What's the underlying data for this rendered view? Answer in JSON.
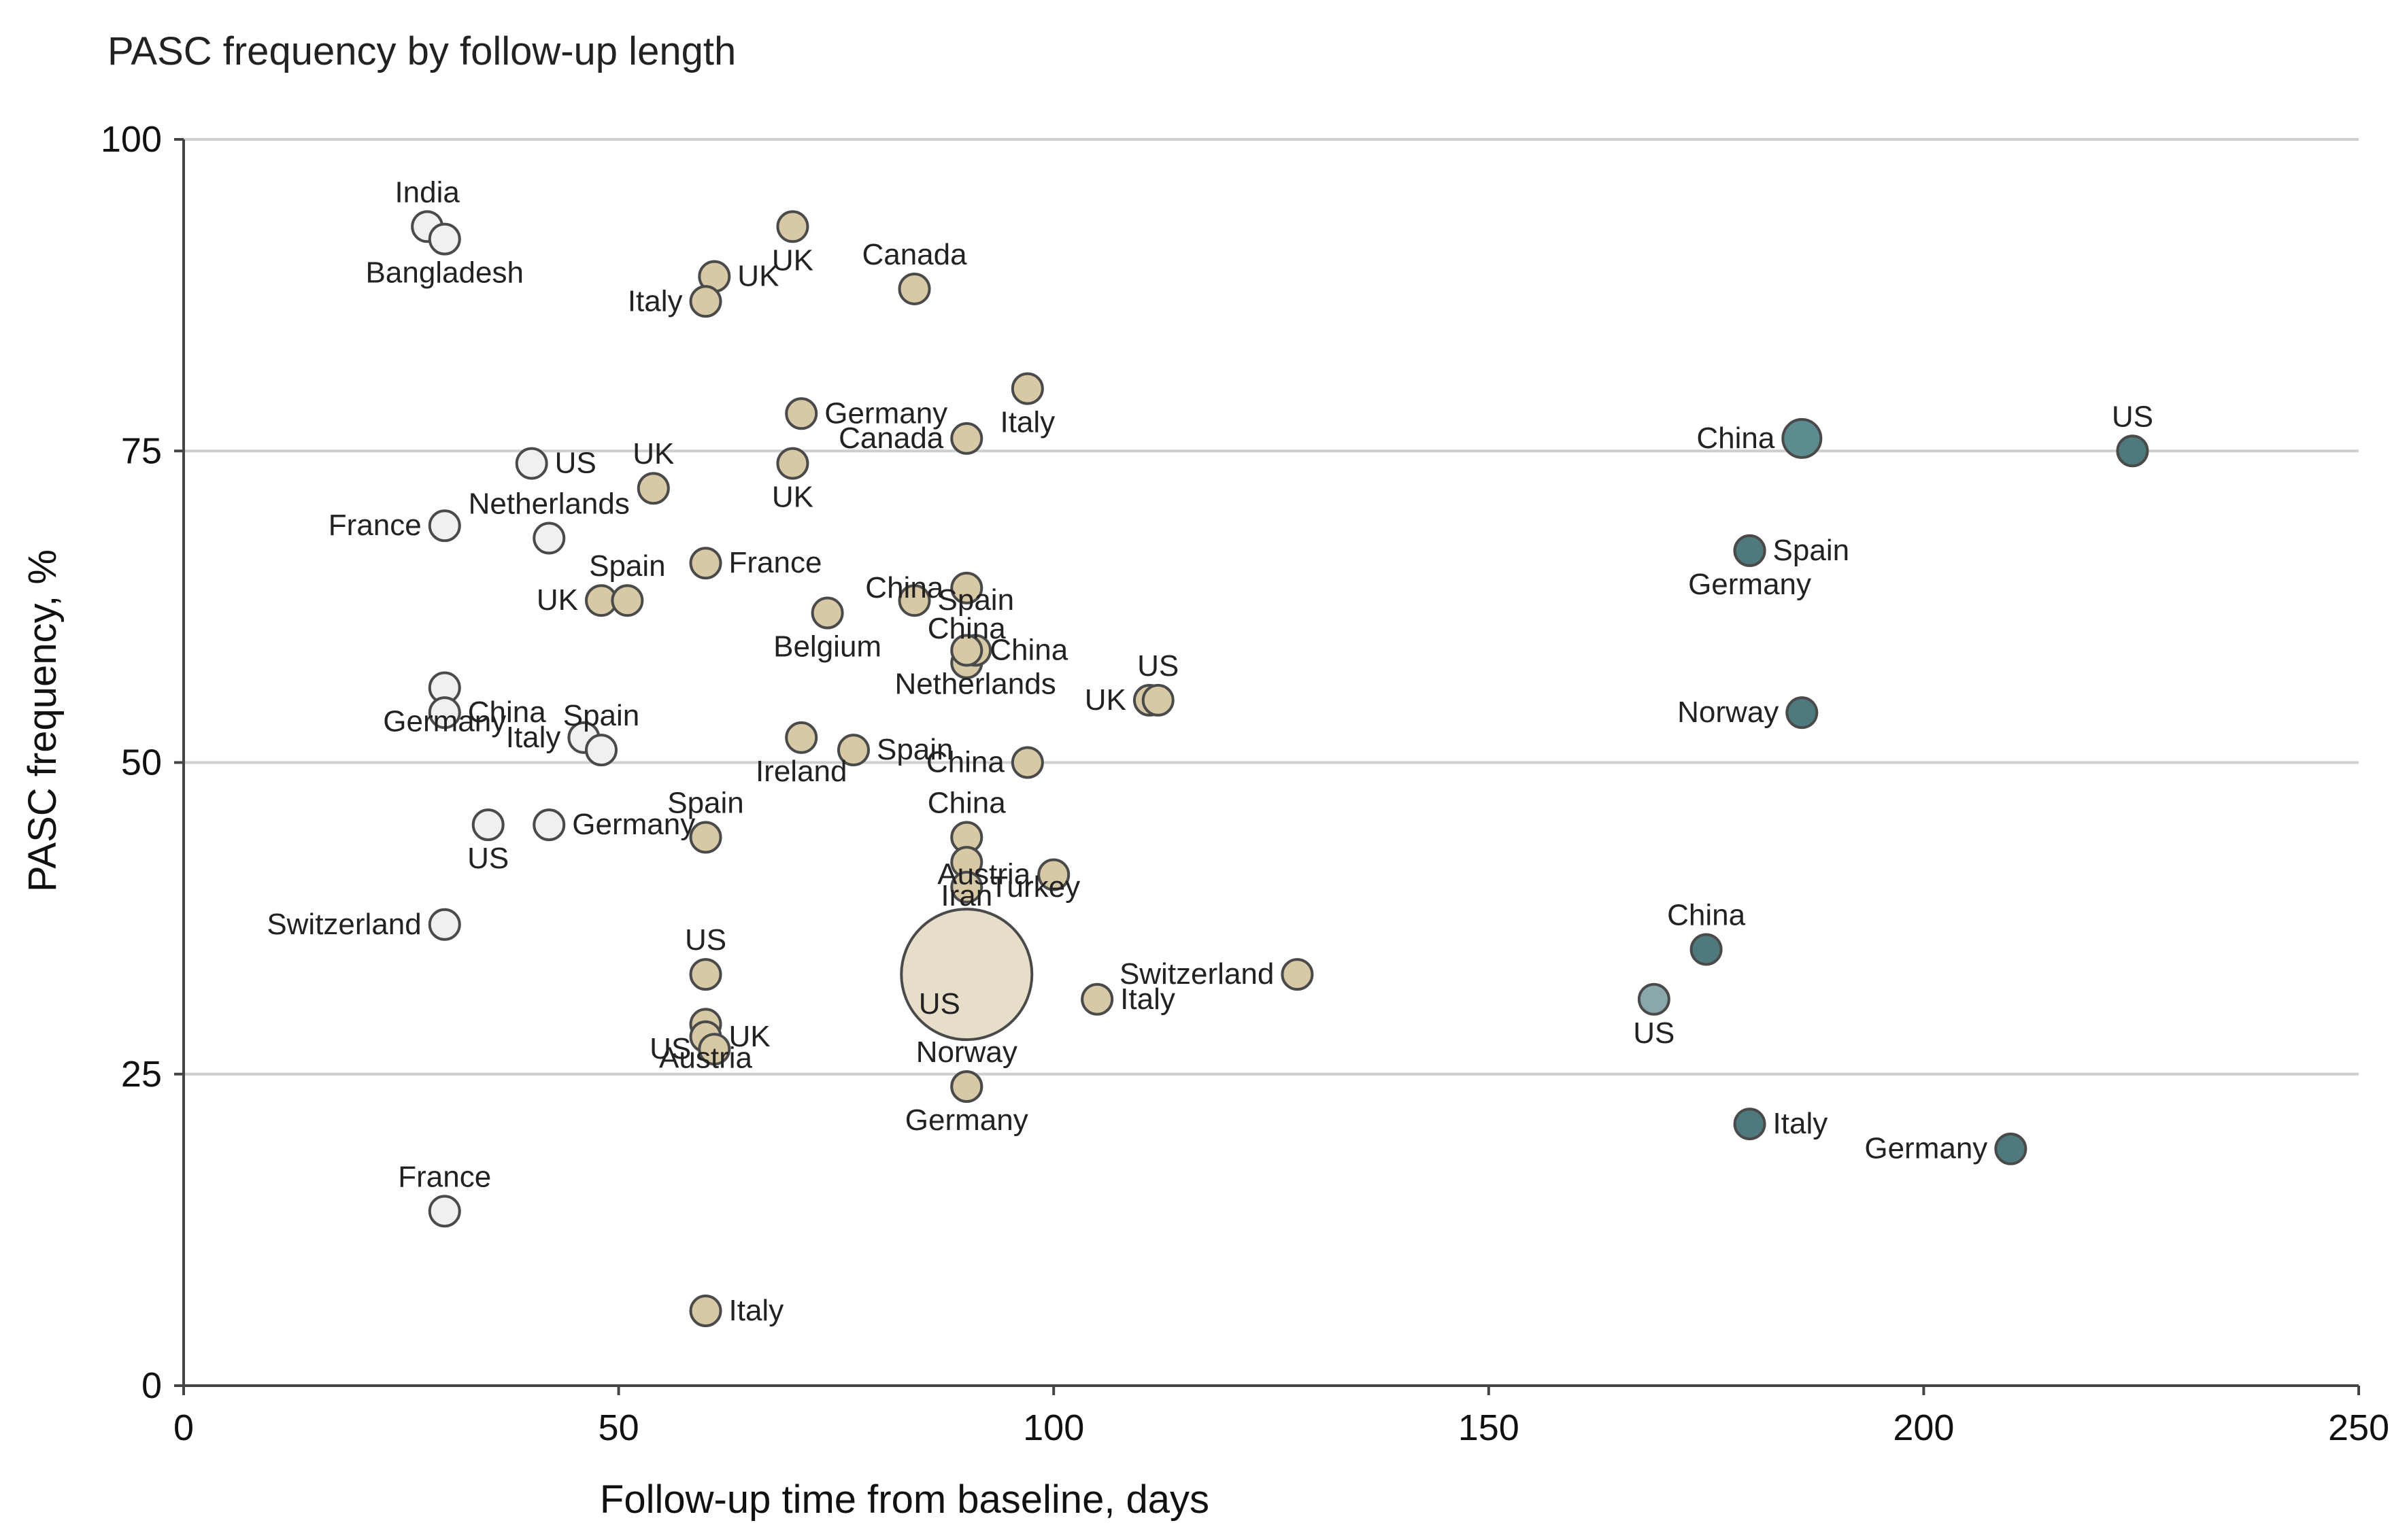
{
  "chart_data": {
    "type": "scatter",
    "title": "PASC frequency by follow-up length",
    "xlabel": "Follow-up time from baseline, days",
    "ylabel": "PASC frequency, %",
    "xlim": [
      0,
      250
    ],
    "ylim": [
      0,
      100
    ],
    "x_ticks": [
      0,
      50,
      100,
      150,
      200,
      250
    ],
    "y_ticks": [
      0,
      25,
      50,
      75,
      100
    ],
    "grid": "horizontal",
    "colors": {
      "light": "#eef1f0",
      "tan": "#d8c9a6",
      "dark": "#4e7a7e",
      "medium": "#8aa7ab",
      "large": "#e3d8c0"
    },
    "points": [
      {
        "x": 28,
        "y": 93,
        "label": "India",
        "group": "light",
        "size": "small"
      },
      {
        "x": 30,
        "y": 92,
        "label": "Bangladesh",
        "group": "light",
        "size": "small"
      },
      {
        "x": 40,
        "y": 74,
        "label": "US",
        "group": "light",
        "size": "small"
      },
      {
        "x": 30,
        "y": 69,
        "label": "France",
        "group": "light",
        "size": "small"
      },
      {
        "x": 42,
        "y": 68,
        "label": "Netherlands",
        "group": "light",
        "size": "small"
      },
      {
        "x": 30,
        "y": 56,
        "label": "Germany",
        "group": "light",
        "size": "small"
      },
      {
        "x": 30,
        "y": 54,
        "label": "China",
        "group": "light",
        "size": "small"
      },
      {
        "x": 46,
        "y": 52,
        "label": "Italy",
        "group": "light",
        "size": "small"
      },
      {
        "x": 48,
        "y": 51,
        "label": "Spain",
        "group": "light",
        "size": "small"
      },
      {
        "x": 35,
        "y": 45,
        "label": "US",
        "group": "light",
        "size": "small"
      },
      {
        "x": 42,
        "y": 45,
        "label": "Germany",
        "group": "light",
        "size": "small"
      },
      {
        "x": 30,
        "y": 37,
        "label": "Switzerland",
        "group": "light",
        "size": "small"
      },
      {
        "x": 30,
        "y": 14,
        "label": "France",
        "group": "light",
        "size": "small"
      },
      {
        "x": 70,
        "y": 93,
        "label": "UK",
        "group": "tan",
        "size": "small"
      },
      {
        "x": 61,
        "y": 89,
        "label": "UK",
        "group": "tan",
        "size": "small"
      },
      {
        "x": 60,
        "y": 87,
        "label": "Italy",
        "group": "tan",
        "size": "small"
      },
      {
        "x": 84,
        "y": 88,
        "label": "Canada",
        "group": "tan",
        "size": "small"
      },
      {
        "x": 97,
        "y": 80,
        "label": "Italy",
        "group": "tan",
        "size": "small"
      },
      {
        "x": 71,
        "y": 78,
        "label": "Germany",
        "group": "tan",
        "size": "small"
      },
      {
        "x": 90,
        "y": 76,
        "label": "Canada",
        "group": "tan",
        "size": "small"
      },
      {
        "x": 54,
        "y": 72,
        "label": "UK",
        "group": "tan",
        "size": "small"
      },
      {
        "x": 70,
        "y": 74,
        "label": "UK",
        "group": "tan",
        "size": "small"
      },
      {
        "x": 60,
        "y": 66,
        "label": "France",
        "group": "tan",
        "size": "small"
      },
      {
        "x": 48,
        "y": 63,
        "label": "UK",
        "group": "tan",
        "size": "small"
      },
      {
        "x": 51,
        "y": 63,
        "label": "Spain",
        "group": "tan",
        "size": "small"
      },
      {
        "x": 74,
        "y": 62,
        "label": "Belgium",
        "group": "tan",
        "size": "small"
      },
      {
        "x": 84,
        "y": 63,
        "label": "Spain",
        "group": "tan",
        "size": "small"
      },
      {
        "x": 90,
        "y": 64,
        "label": "China",
        "group": "tan",
        "size": "small"
      },
      {
        "x": 90,
        "y": 58,
        "label": "China",
        "group": "tan",
        "size": "small"
      },
      {
        "x": 91,
        "y": 59,
        "label": "Netherlands",
        "group": "tan",
        "size": "small"
      },
      {
        "x": 90,
        "y": 59,
        "label": "China",
        "group": "tan",
        "size": "small"
      },
      {
        "x": 111,
        "y": 55,
        "label": "UK",
        "group": "tan",
        "size": "small"
      },
      {
        "x": 112,
        "y": 55,
        "label": "US",
        "group": "tan",
        "size": "small"
      },
      {
        "x": 71,
        "y": 52,
        "label": "Ireland",
        "group": "tan",
        "size": "small"
      },
      {
        "x": 77,
        "y": 51,
        "label": "Spain",
        "group": "tan",
        "size": "small"
      },
      {
        "x": 97,
        "y": 50,
        "label": "China",
        "group": "tan",
        "size": "small"
      },
      {
        "x": 90,
        "y": 44,
        "label": "China",
        "group": "tan",
        "size": "small"
      },
      {
        "x": 90,
        "y": 42,
        "label": "Iran",
        "group": "tan",
        "size": "small"
      },
      {
        "x": 90,
        "y": 40,
        "label": "Turkey",
        "group": "tan",
        "size": "small"
      },
      {
        "x": 100,
        "y": 41,
        "label": "Austria",
        "group": "tan",
        "size": "small"
      },
      {
        "x": 60,
        "y": 44,
        "label": "Spain",
        "group": "tan",
        "size": "small"
      },
      {
        "x": 90,
        "y": 33,
        "label": "US",
        "group": "large",
        "size": "large"
      },
      {
        "x": 105,
        "y": 31,
        "label": "Italy",
        "group": "tan",
        "size": "small"
      },
      {
        "x": 128,
        "y": 33,
        "label": "Switzerland",
        "group": "tan",
        "size": "small"
      },
      {
        "x": 60,
        "y": 33,
        "label": "US",
        "group": "tan",
        "size": "small"
      },
      {
        "x": 60,
        "y": 29,
        "label": "Austria",
        "group": "tan",
        "size": "small"
      },
      {
        "x": 60,
        "y": 28,
        "label": "UK",
        "group": "tan",
        "size": "small"
      },
      {
        "x": 61,
        "y": 27,
        "label": "US",
        "group": "tan",
        "size": "small"
      },
      {
        "x": 90,
        "y": 24,
        "label": "Norway",
        "group": "tan",
        "size": "small"
      },
      {
        "x": 90,
        "y": 24,
        "label": "Germany",
        "group": "tan",
        "size": "small"
      },
      {
        "x": 60,
        "y": 6,
        "label": "Italy",
        "group": "tan",
        "size": "small"
      },
      {
        "x": 186,
        "y": 76,
        "label": "China",
        "group": "medium-dark",
        "size": "medium"
      },
      {
        "x": 224,
        "y": 75,
        "label": "US",
        "group": "dark",
        "size": "small"
      },
      {
        "x": 180,
        "y": 67,
        "label": "Germany",
        "group": "dark",
        "size": "small"
      },
      {
        "x": 180,
        "y": 67,
        "label": "Spain",
        "group": "dark",
        "size": "small"
      },
      {
        "x": 186,
        "y": 54,
        "label": "Norway",
        "group": "dark",
        "size": "small"
      },
      {
        "x": 175,
        "y": 35,
        "label": "China",
        "group": "dark",
        "size": "small"
      },
      {
        "x": 169,
        "y": 31,
        "label": "US",
        "group": "medium",
        "size": "small"
      },
      {
        "x": 180,
        "y": 21,
        "label": "Italy",
        "group": "dark",
        "size": "small"
      },
      {
        "x": 210,
        "y": 19,
        "label": "Germany",
        "group": "dark",
        "size": "small"
      }
    ]
  }
}
